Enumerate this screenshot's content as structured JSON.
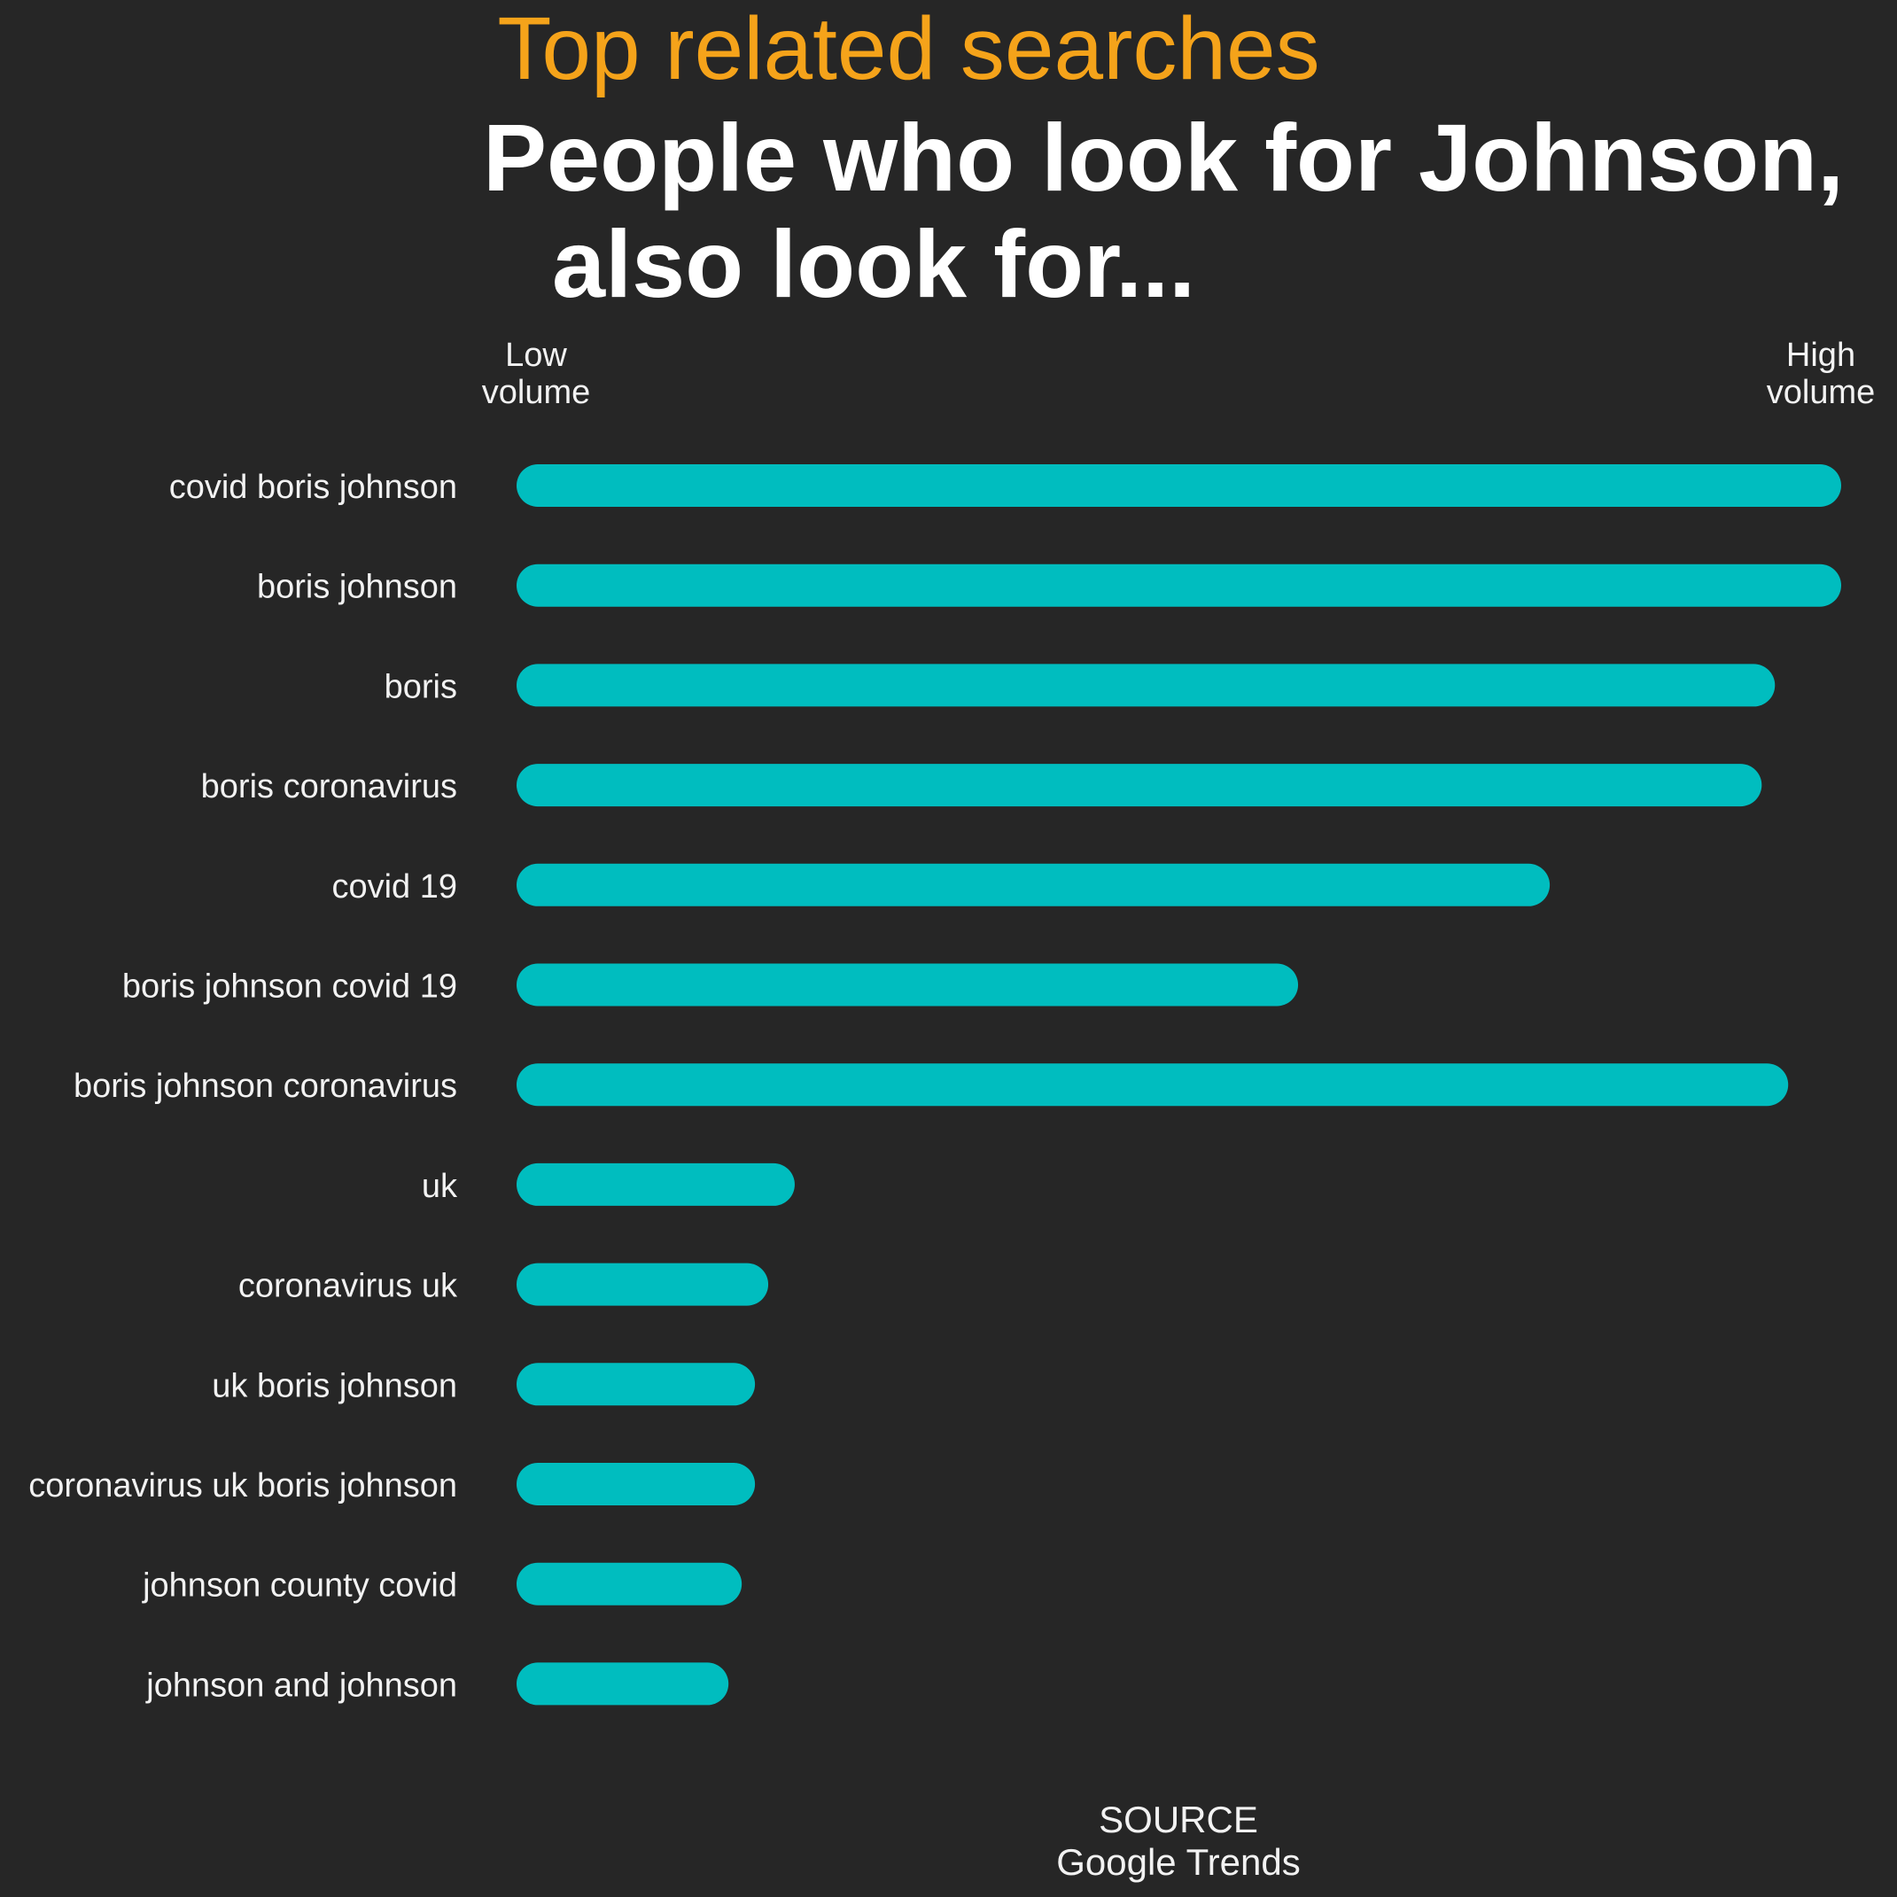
{
  "kicker": "Top related searches",
  "headline_line1": "People who look for Johnson,",
  "headline_line2": "also look for...",
  "scale_low": [
    "Low",
    "volume"
  ],
  "scale_high": [
    "High",
    "volume"
  ],
  "source_label": "SOURCE",
  "source_name": "Google Trends",
  "colors": {
    "bar": "#00bdbf",
    "kicker": "#f5a31a",
    "background": "#262626"
  },
  "chart_data": {
    "type": "bar",
    "orientation": "horizontal",
    "categories": [
      "covid boris johnson",
      "boris johnson",
      "boris",
      "boris coronavirus",
      "covid 19",
      "boris johnson covid 19",
      "boris johnson coronavirus",
      "uk",
      "coronavirus uk",
      "uk boris johnson",
      "coronavirus uk boris johnson",
      "johnson county covid",
      "johnson and johnson"
    ],
    "values": [
      100,
      100,
      95,
      94,
      78,
      59,
      96,
      21,
      19,
      18,
      18,
      17,
      16
    ],
    "xlim": [
      0,
      100
    ],
    "grid": false,
    "xlabel_low": "Low volume",
    "xlabel_high": "High volume"
  }
}
